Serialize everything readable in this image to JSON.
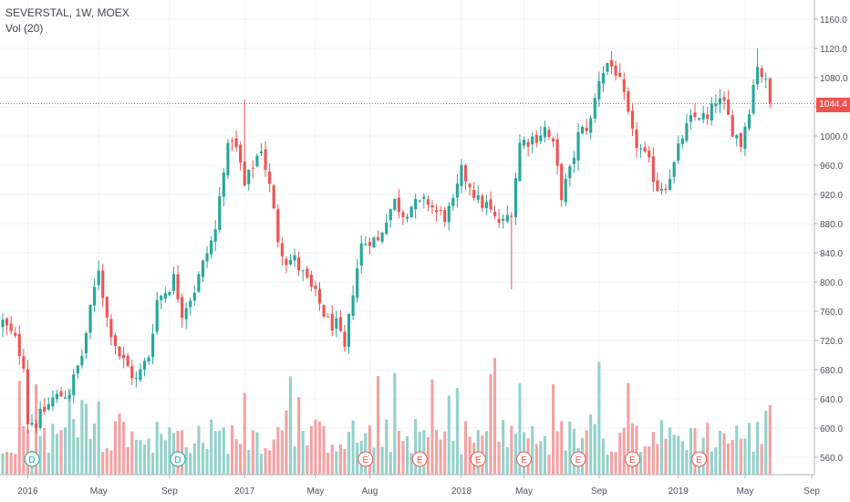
{
  "legend": {
    "symbol": "SEVERSTAL, 1W, MOEX",
    "indicator": "Vol (20)"
  },
  "last_price": {
    "label": "1044.4",
    "value": 1044.4,
    "color": "#ef5350"
  },
  "colors": {
    "up": "#26a69a",
    "down": "#ef5350",
    "up_volume": "#94d1cb",
    "down_volume": "#f2a3a2",
    "grid": "#f0f3fa",
    "axis_text": "#4c525e"
  },
  "chart_data": {
    "type": "candlestick",
    "symbol": "SEVERSTAL",
    "interval": "1W",
    "exchange": "MOEX",
    "y_axis": {
      "position": "right",
      "range": [
        540,
        1180
      ],
      "ticks": [
        560,
        600,
        640,
        680,
        720,
        760,
        800,
        840,
        880,
        920,
        960,
        1000,
        1040,
        1080,
        1120,
        1160
      ],
      "tick_labels": [
        "560.0",
        "600.0",
        "640.0",
        "680.0",
        "720.0",
        "760.0",
        "800.0",
        "840.0",
        "880.0",
        "920.0",
        "960.0",
        "1000.0",
        "1040.0",
        "1080.0",
        "1120.0",
        "1160.0"
      ]
    },
    "x_axis": {
      "labels": [
        "2016",
        "May",
        "Sep",
        "2017",
        "May",
        "Aug",
        "2018",
        "May",
        "Sep",
        "2019",
        "May",
        "Sep"
      ],
      "label_week_index": [
        6,
        23,
        40,
        58,
        75,
        88,
        110,
        125,
        143,
        162,
        178,
        194
      ]
    },
    "grid": true,
    "events": [
      {
        "label": "D",
        "week": 7
      },
      {
        "label": "D",
        "week": 42
      },
      {
        "label": "E",
        "week": 87
      },
      {
        "label": "E",
        "week": 100
      },
      {
        "label": "E",
        "week": 114
      },
      {
        "label": "E",
        "week": 125
      },
      {
        "label": "E",
        "week": 138
      },
      {
        "label": "E",
        "week": 151
      },
      {
        "label": "E",
        "week": 167
      }
    ],
    "close_path": [
      [
        0,
        745
      ],
      [
        3,
        720
      ],
      [
        5,
        690
      ],
      [
        6,
        610
      ],
      [
        8,
        608
      ],
      [
        12,
        640
      ],
      [
        16,
        650
      ],
      [
        19,
        700
      ],
      [
        23,
        820
      ],
      [
        25,
        750
      ],
      [
        28,
        700
      ],
      [
        32,
        665
      ],
      [
        35,
        700
      ],
      [
        37,
        775
      ],
      [
        40,
        795
      ],
      [
        41,
        805
      ],
      [
        43,
        760
      ],
      [
        46,
        790
      ],
      [
        49,
        840
      ],
      [
        51,
        870
      ],
      [
        53,
        960
      ],
      [
        55,
        1000
      ],
      [
        56,
        980
      ],
      [
        57,
        960
      ],
      [
        58,
        930
      ],
      [
        60,
        960
      ],
      [
        62,
        985
      ],
      [
        64,
        930
      ],
      [
        66,
        860
      ],
      [
        68,
        830
      ],
      [
        70,
        830
      ],
      [
        72,
        810
      ],
      [
        74,
        790
      ],
      [
        76,
        770
      ],
      [
        78,
        745
      ],
      [
        80,
        740
      ],
      [
        82,
        705
      ],
      [
        84,
        790
      ],
      [
        86,
        850
      ],
      [
        88,
        860
      ],
      [
        90,
        855
      ],
      [
        92,
        890
      ],
      [
        94,
        910
      ],
      [
        96,
        895
      ],
      [
        98,
        905
      ],
      [
        100,
        905
      ],
      [
        102,
        910
      ],
      [
        104,
        895
      ],
      [
        106,
        890
      ],
      [
        108,
        905
      ],
      [
        110,
        950
      ],
      [
        112,
        935
      ],
      [
        114,
        910
      ],
      [
        116,
        905
      ],
      [
        118,
        885
      ],
      [
        120,
        880
      ],
      [
        122,
        900
      ],
      [
        124,
        990
      ],
      [
        126,
        995
      ],
      [
        128,
        1000
      ],
      [
        130,
        1010
      ],
      [
        132,
        985
      ],
      [
        134,
        920
      ],
      [
        136,
        950
      ],
      [
        138,
        1000
      ],
      [
        141,
        1020
      ],
      [
        143,
        1080
      ],
      [
        145,
        1100
      ],
      [
        147,
        1090
      ],
      [
        149,
        1050
      ],
      [
        151,
        1000
      ],
      [
        153,
        980
      ],
      [
        155,
        960
      ],
      [
        157,
        930
      ],
      [
        159,
        935
      ],
      [
        161,
        960
      ],
      [
        163,
        1000
      ],
      [
        165,
        1020
      ],
      [
        167,
        1030
      ],
      [
        169,
        1020
      ],
      [
        171,
        1050
      ],
      [
        173,
        1040
      ],
      [
        175,
        1010
      ],
      [
        177,
        990
      ],
      [
        179,
        1040
      ],
      [
        181,
        1100
      ],
      [
        183,
        1070
      ],
      [
        184,
        1045
      ]
    ],
    "volume": {
      "shown": true,
      "position": "bottom overlay",
      "baseline": 0,
      "max_seen": 330,
      "unit": "relative"
    }
  },
  "y_labels": [
    "560.0",
    "600.0",
    "640.0",
    "680.0",
    "720.0",
    "760.0",
    "800.0",
    "840.0",
    "880.0",
    "920.0",
    "960.0",
    "1000.0",
    "1040.0",
    "1080.0",
    "1120.0",
    "1160.0"
  ],
  "x_labels": [
    "2016",
    "May",
    "Sep",
    "2017",
    "May",
    "Aug",
    "2018",
    "May",
    "Sep",
    "2019",
    "May",
    "Sep"
  ]
}
